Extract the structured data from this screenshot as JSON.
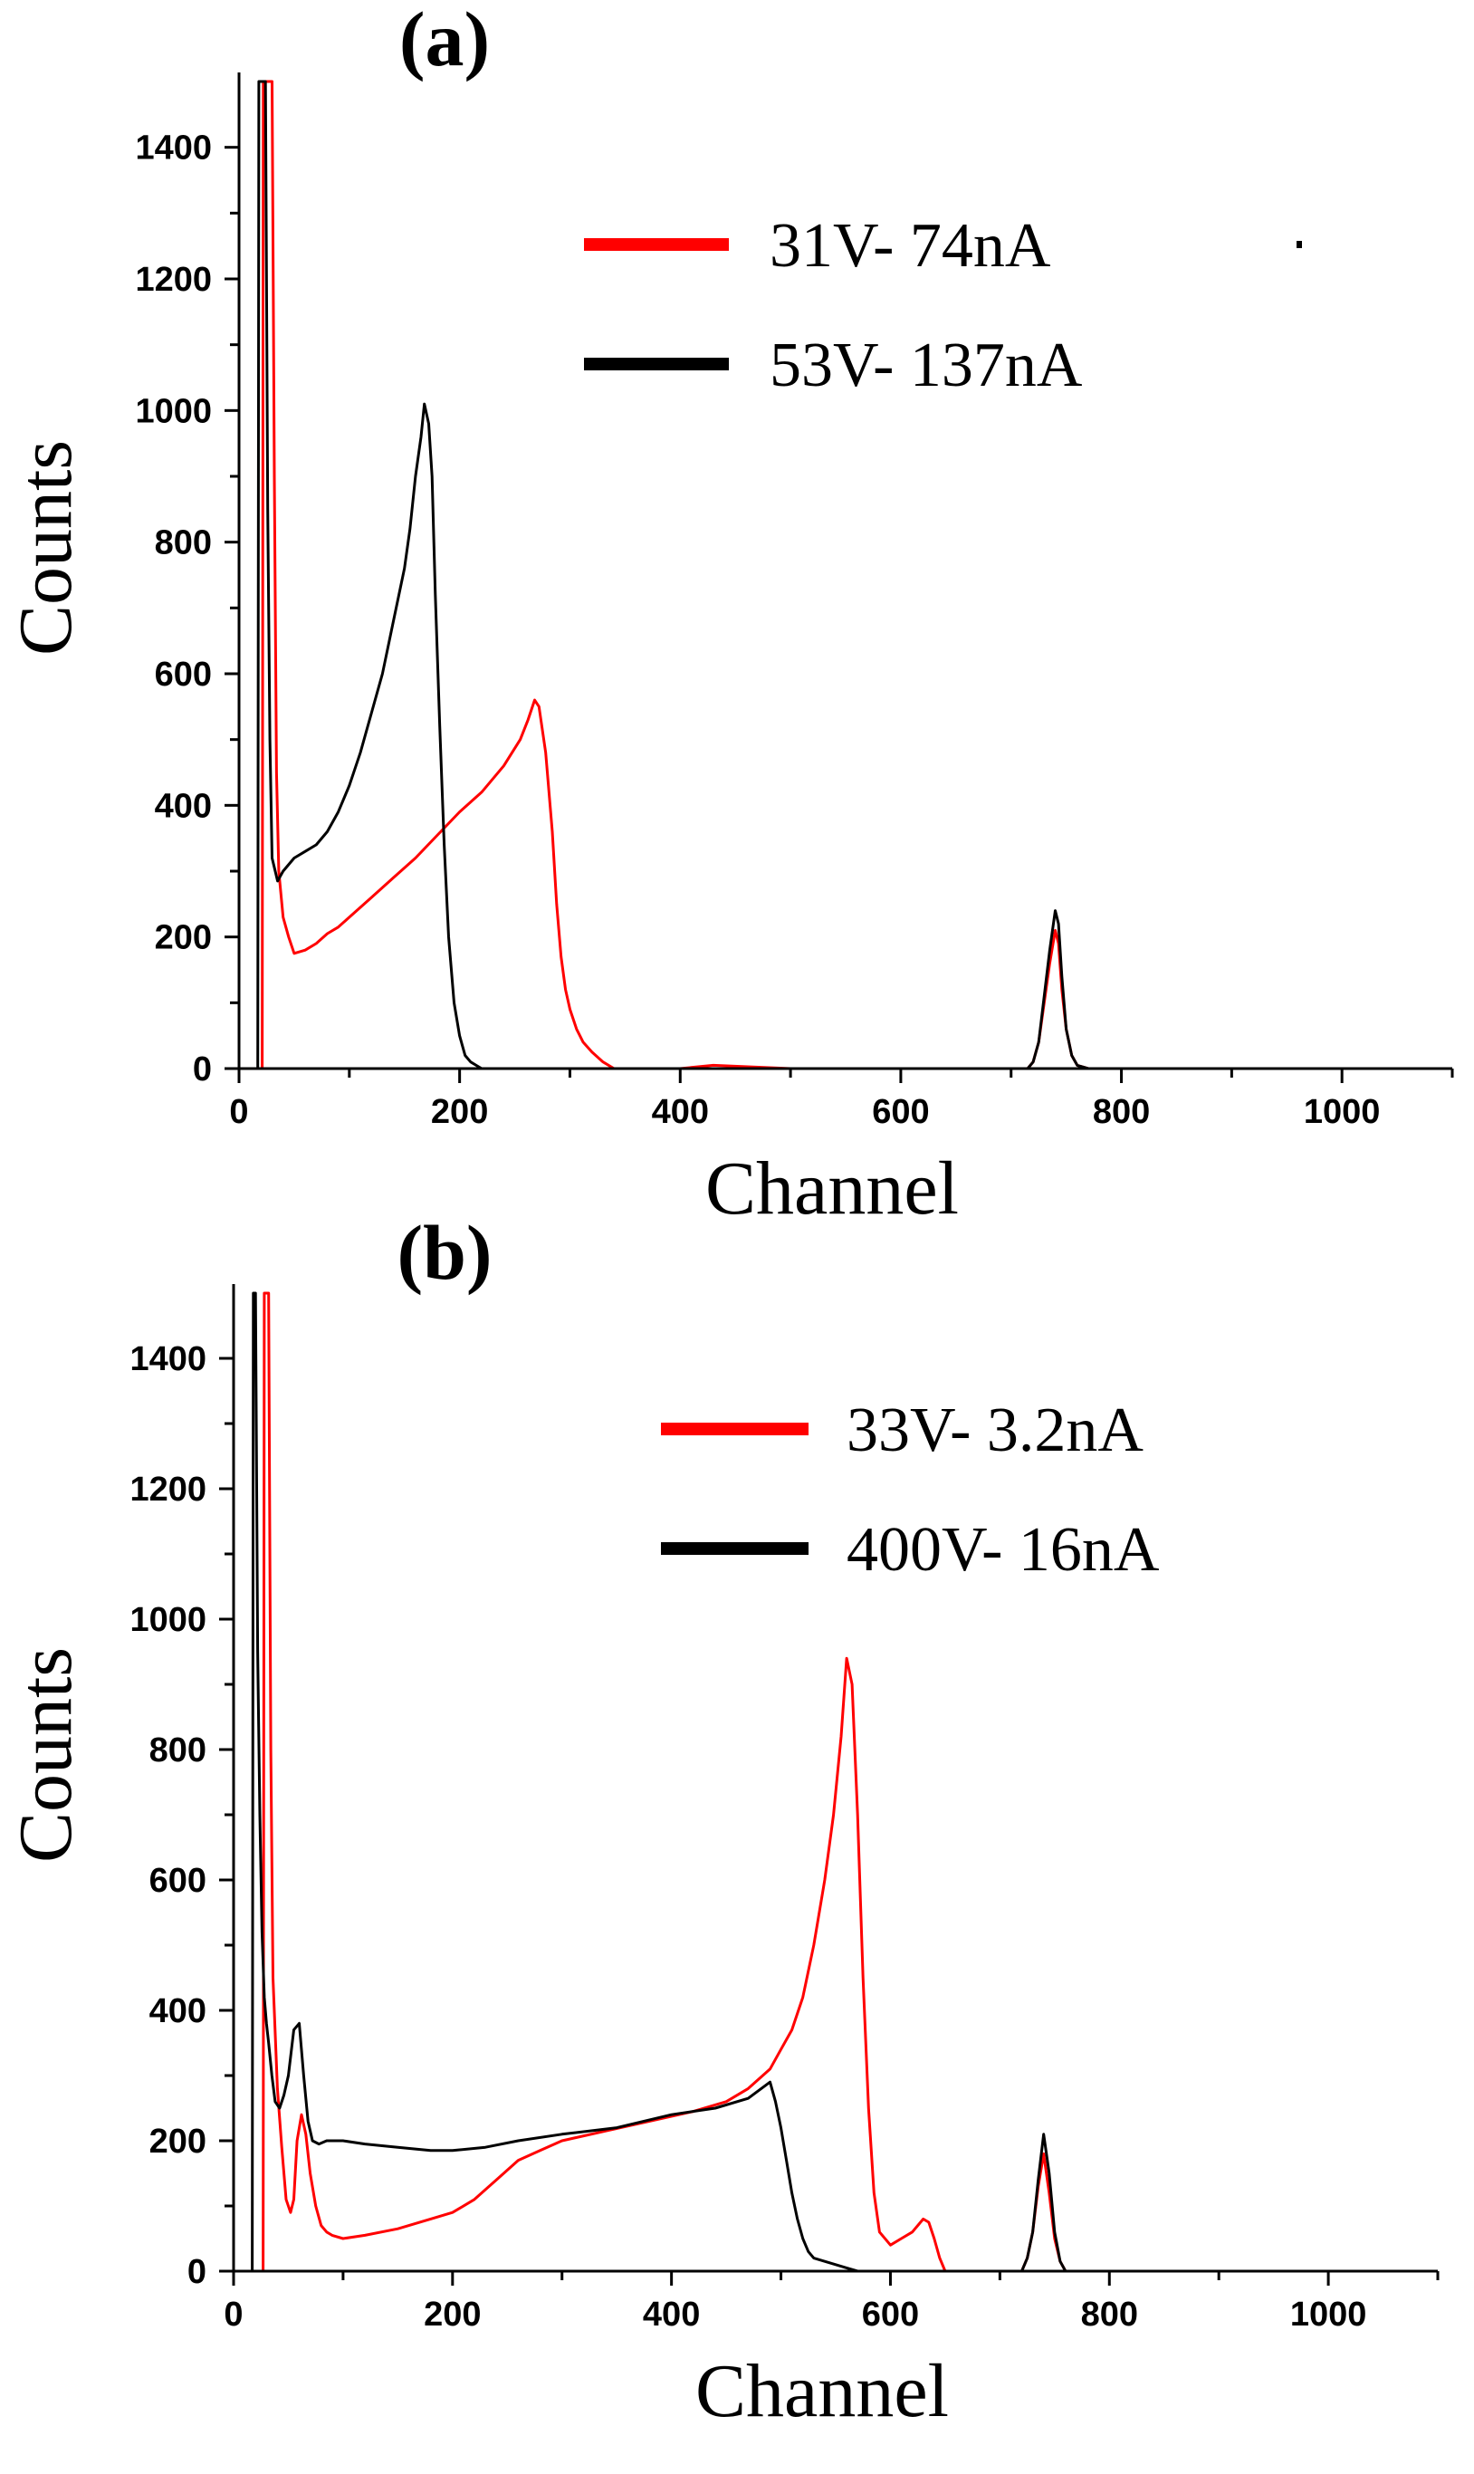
{
  "chart_data": [
    {
      "type": "line",
      "panel_label": "(a)",
      "xlabel": "Channel",
      "ylabel": "Counts",
      "xlim": [
        0,
        1100
      ],
      "ylim": [
        0,
        1500
      ],
      "xticks": [
        0,
        200,
        400,
        600,
        800,
        1000
      ],
      "yticks": [
        0,
        200,
        400,
        600,
        800,
        1000,
        1200,
        1400
      ],
      "legend_position": "top-right",
      "series": [
        {
          "name": "31V- 74nA",
          "color": "#ff0000",
          "x": [
            0,
            1,
            2,
            3,
            4,
            5,
            6,
            7,
            8,
            9,
            10,
            11,
            12,
            13,
            14,
            15,
            16,
            17,
            18,
            19,
            20,
            21,
            22,
            23,
            24,
            25,
            26,
            27,
            28,
            29,
            30,
            32,
            34,
            36,
            40,
            45,
            50,
            60,
            70,
            80,
            90,
            100,
            120,
            140,
            160,
            180,
            200,
            220,
            240,
            255,
            262,
            268,
            272,
            278,
            284,
            288,
            292,
            296,
            300,
            306,
            312,
            320,
            330,
            340,
            360,
            380,
            400,
            430,
            500,
            600,
            700,
            715,
            720,
            725,
            730,
            735,
            740,
            743,
            746,
            750,
            755,
            760,
            770,
            800,
            900,
            1000,
            1100
          ],
          "y": [
            0,
            0,
            0,
            0,
            0,
            0,
            0,
            0,
            0,
            0,
            0,
            0,
            0,
            0,
            0,
            0,
            0,
            0,
            0,
            0,
            0,
            0,
            1500,
            1500,
            1500,
            1500,
            1500,
            1500,
            1500,
            1500,
            1500,
            900,
            450,
            300,
            230,
            200,
            175,
            180,
            190,
            205,
            215,
            230,
            260,
            290,
            320,
            355,
            390,
            420,
            460,
            500,
            530,
            560,
            550,
            480,
            360,
            250,
            170,
            120,
            90,
            60,
            40,
            25,
            10,
            0,
            0,
            0,
            0,
            5,
            0,
            0,
            0,
            0,
            10,
            40,
            100,
            160,
            210,
            190,
            120,
            60,
            20,
            5,
            0,
            0,
            0,
            0,
            0
          ]
        },
        {
          "name": "53V- 137nA",
          "color": "#000000",
          "x": [
            0,
            1,
            2,
            3,
            4,
            5,
            6,
            7,
            8,
            9,
            10,
            11,
            12,
            13,
            14,
            15,
            16,
            17,
            18,
            19,
            20,
            22,
            24,
            26,
            28,
            30,
            35,
            40,
            50,
            60,
            70,
            80,
            90,
            100,
            110,
            120,
            130,
            140,
            150,
            155,
            160,
            165,
            168,
            172,
            175,
            178,
            182,
            186,
            190,
            195,
            200,
            205,
            210,
            215,
            220,
            230,
            300,
            500,
            700,
            715,
            720,
            725,
            730,
            735,
            740,
            743,
            746,
            750,
            755,
            760,
            770,
            800,
            900,
            1000,
            1100
          ],
          "y": [
            0,
            0,
            0,
            0,
            0,
            0,
            0,
            0,
            0,
            0,
            0,
            0,
            0,
            0,
            0,
            0,
            0,
            0,
            1500,
            1500,
            1500,
            1500,
            1500,
            850,
            500,
            320,
            285,
            300,
            320,
            330,
            340,
            360,
            390,
            430,
            480,
            540,
            600,
            680,
            760,
            820,
            900,
            960,
            1010,
            980,
            900,
            720,
            520,
            340,
            200,
            100,
            50,
            20,
            10,
            5,
            0,
            0,
            0,
            0,
            0,
            0,
            10,
            40,
            110,
            180,
            240,
            220,
            140,
            60,
            20,
            5,
            0,
            0,
            0,
            0,
            0
          ]
        }
      ]
    },
    {
      "type": "line",
      "panel_label": "(b)",
      "xlabel": "Channel",
      "ylabel": "Counts",
      "xlim": [
        0,
        1100
      ],
      "ylim": [
        0,
        1500
      ],
      "xticks": [
        0,
        200,
        400,
        600,
        800,
        1000
      ],
      "yticks": [
        0,
        200,
        400,
        600,
        800,
        1000,
        1200,
        1400
      ],
      "legend_position": "top-right",
      "series": [
        {
          "name": "33V- 3.2nA",
          "color": "#ff0000",
          "x": [
            0,
            1,
            2,
            3,
            4,
            5,
            6,
            7,
            8,
            9,
            10,
            11,
            12,
            13,
            14,
            15,
            16,
            17,
            18,
            19,
            20,
            21,
            22,
            23,
            24,
            25,
            26,
            27,
            28,
            29,
            30,
            32,
            34,
            36,
            40,
            44,
            48,
            52,
            55,
            58,
            62,
            66,
            70,
            75,
            80,
            85,
            90,
            100,
            120,
            150,
            180,
            200,
            220,
            240,
            260,
            280,
            300,
            340,
            380,
            420,
            450,
            470,
            490,
            500,
            510,
            520,
            530,
            540,
            548,
            555,
            560,
            565,
            570,
            575,
            580,
            585,
            590,
            600,
            610,
            620,
            630,
            635,
            640,
            645,
            650,
            700,
            720,
            725,
            730,
            735,
            740,
            745,
            750,
            755,
            760,
            800,
            900,
            1000,
            1100
          ],
          "y": [
            0,
            0,
            0,
            0,
            0,
            0,
            0,
            0,
            0,
            0,
            0,
            0,
            0,
            0,
            0,
            0,
            0,
            0,
            0,
            0,
            0,
            0,
            0,
            0,
            0,
            0,
            0,
            0,
            1500,
            1500,
            1500,
            1500,
            800,
            450,
            280,
            190,
            110,
            90,
            110,
            200,
            240,
            210,
            150,
            100,
            70,
            60,
            55,
            50,
            55,
            65,
            80,
            90,
            110,
            140,
            170,
            185,
            200,
            215,
            230,
            245,
            260,
            280,
            310,
            340,
            370,
            420,
            500,
            600,
            700,
            820,
            940,
            900,
            700,
            450,
            250,
            120,
            60,
            40,
            50,
            60,
            80,
            75,
            50,
            20,
            0,
            0,
            0,
            20,
            60,
            130,
            180,
            120,
            50,
            15,
            0,
            0,
            0,
            0,
            0
          ]
        },
        {
          "name": "400V- 16nA",
          "color": "#000000",
          "x": [
            0,
            1,
            2,
            3,
            4,
            5,
            6,
            7,
            8,
            9,
            10,
            11,
            12,
            13,
            14,
            15,
            16,
            17,
            18,
            19,
            20,
            22,
            24,
            26,
            28,
            30,
            32,
            35,
            38,
            42,
            46,
            50,
            55,
            60,
            64,
            68,
            72,
            78,
            85,
            90,
            100,
            120,
            150,
            180,
            200,
            230,
            260,
            300,
            350,
            400,
            440,
            470,
            490,
            495,
            500,
            505,
            510,
            515,
            520,
            525,
            530,
            540,
            550,
            560,
            570,
            700,
            720,
            725,
            730,
            735,
            740,
            745,
            750,
            755,
            760,
            800,
            900,
            1000,
            1100
          ],
          "y": [
            0,
            0,
            0,
            0,
            0,
            0,
            0,
            0,
            0,
            0,
            0,
            0,
            0,
            0,
            0,
            0,
            0,
            0,
            1500,
            1500,
            1500,
            950,
            700,
            520,
            420,
            380,
            350,
            300,
            260,
            250,
            270,
            300,
            370,
            380,
            300,
            230,
            200,
            195,
            200,
            200,
            200,
            195,
            190,
            185,
            185,
            190,
            200,
            210,
            220,
            240,
            250,
            265,
            290,
            260,
            220,
            170,
            120,
            80,
            50,
            30,
            20,
            15,
            10,
            5,
            0,
            0,
            0,
            20,
            60,
            140,
            210,
            150,
            60,
            15,
            0,
            0,
            0,
            0,
            0
          ]
        }
      ]
    }
  ]
}
